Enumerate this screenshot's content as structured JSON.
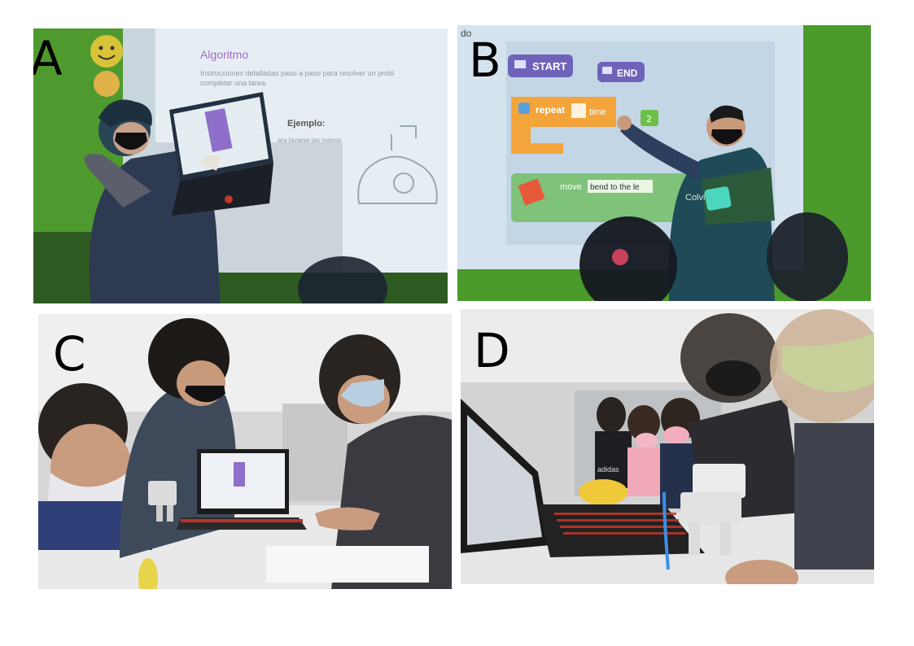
{
  "panels": [
    {
      "label": "A",
      "slide": {
        "title": "Algoritmo",
        "text_line1": "Instrucciones detalladas paso a paso para resolver un probl",
        "text_line2": "completar una tarea.",
        "example_heading": "Ejemplo:",
        "example_text": "ara lavarse las manos"
      }
    },
    {
      "label": "B",
      "blocks": {
        "start": "START",
        "end": "END",
        "repeat": "repeat",
        "time": "time",
        "count": "2",
        "move": "move",
        "move_value": "bend to the le",
        "top_fragment": "do"
      },
      "shirt_text": "Colvin"
    },
    {
      "label": "C"
    },
    {
      "label": "D",
      "shirt_text": "adidas"
    }
  ],
  "colors": {
    "wall_green": "#58a531",
    "block_orange": "#f3a43a",
    "block_purple": "#6f63b9",
    "block_green": "#6cc04a",
    "shirt_blue": "#2c3f5e"
  }
}
